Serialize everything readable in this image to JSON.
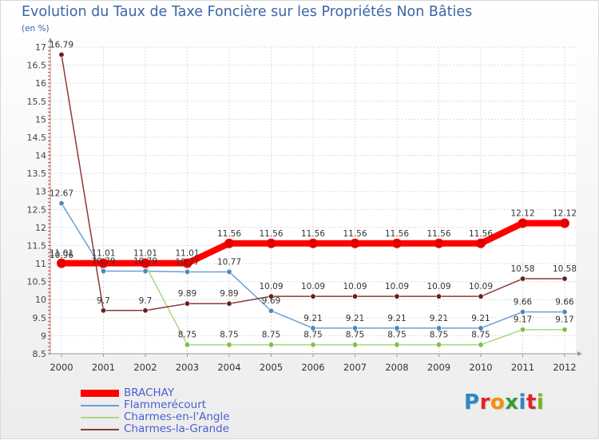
{
  "header": {
    "title": "Evolution du Taux de Taxe Foncière sur les Propriétés Non Bâties",
    "unit": "(en %)"
  },
  "brand": {
    "letters": [
      "P",
      "r",
      "o",
      "x",
      "i",
      "t",
      "i"
    ],
    "colors": [
      "#2f86c8",
      "#e3232a",
      "#f39200",
      "#3a9b35",
      "#2f86c8",
      "#e3232a",
      "#7ab51d"
    ]
  },
  "chart_data": {
    "type": "line",
    "title": "Evolution du Taux de Taxe Foncière sur les Propriétés Non Bâties",
    "ylabel": "(en %)",
    "xlabel": "",
    "x": [
      "2000",
      "2001",
      "2002",
      "2003",
      "2004",
      "2005",
      "2006",
      "2007",
      "2008",
      "2009",
      "2010",
      "2011",
      "2012"
    ],
    "ylim": [
      8.5,
      17
    ],
    "yticks": [
      8.5,
      9,
      9.5,
      10,
      10.5,
      11,
      11.5,
      12,
      12.5,
      13,
      13.5,
      14,
      14.5,
      15,
      15.5,
      16,
      16.5,
      17
    ],
    "ytick_labels": [
      "8.5",
      "9",
      "9.5",
      "10",
      "10.5",
      "11",
      "11.5",
      "12",
      "12.5",
      "13",
      "13.5",
      "14",
      "14.5",
      "15",
      "15.5",
      "16",
      "16.5",
      "17"
    ],
    "legend_position": "bottom-left",
    "series": [
      {
        "name": "BRACHAY",
        "color": "#ff0000",
        "marker": "#e00000",
        "emphasis": true,
        "values": [
          11.01,
          11.01,
          11.01,
          11.01,
          11.56,
          11.56,
          11.56,
          11.56,
          11.56,
          11.56,
          11.56,
          12.12,
          12.12
        ],
        "labels": [
          "11.01",
          "11.01",
          "11.01",
          "11.01",
          "11.56",
          "11.56",
          "11.56",
          "11.56",
          "11.56",
          "11.56",
          "11.56",
          "12.12",
          "12.12"
        ]
      },
      {
        "name": "Flammerécourt",
        "color": "#6a9fd0",
        "marker": "#4f86c0",
        "values": [
          12.67,
          10.79,
          10.79,
          10.77,
          10.77,
          9.69,
          9.21,
          9.21,
          9.21,
          9.21,
          9.21,
          9.66,
          9.66
        ],
        "labels": [
          "12.67",
          "10.79",
          "10.79",
          "10.77",
          "10.77",
          "9.69",
          "9.21",
          "9.21",
          "9.21",
          "9.21",
          "9.21",
          "9.66",
          "9.66"
        ]
      },
      {
        "name": "Charmes-en-l'Angle",
        "color": "#a8d880",
        "marker": "#7cc242",
        "values": [
          10.96,
          10.96,
          10.96,
          8.75,
          8.75,
          8.75,
          8.75,
          8.75,
          8.75,
          8.75,
          8.75,
          9.17,
          9.17
        ],
        "labels": [
          "10.96",
          "",
          "",
          "8.75",
          "8.75",
          "8.75",
          "8.75",
          "8.75",
          "8.75",
          "8.75",
          "8.75",
          "9.17",
          "9.17"
        ]
      },
      {
        "name": "Charmes-la-Grande",
        "color": "#8b3a3a",
        "marker": "#6a1e1e",
        "values": [
          16.79,
          9.7,
          9.7,
          9.89,
          9.89,
          10.09,
          10.09,
          10.09,
          10.09,
          10.09,
          10.09,
          10.58,
          10.58
        ],
        "labels": [
          "16.79",
          "9.7",
          "9.7",
          "9.89",
          "9.89",
          "10.09",
          "10.09",
          "10.09",
          "10.09",
          "10.09",
          "10.09",
          "10.58",
          "10.58"
        ]
      }
    ]
  }
}
